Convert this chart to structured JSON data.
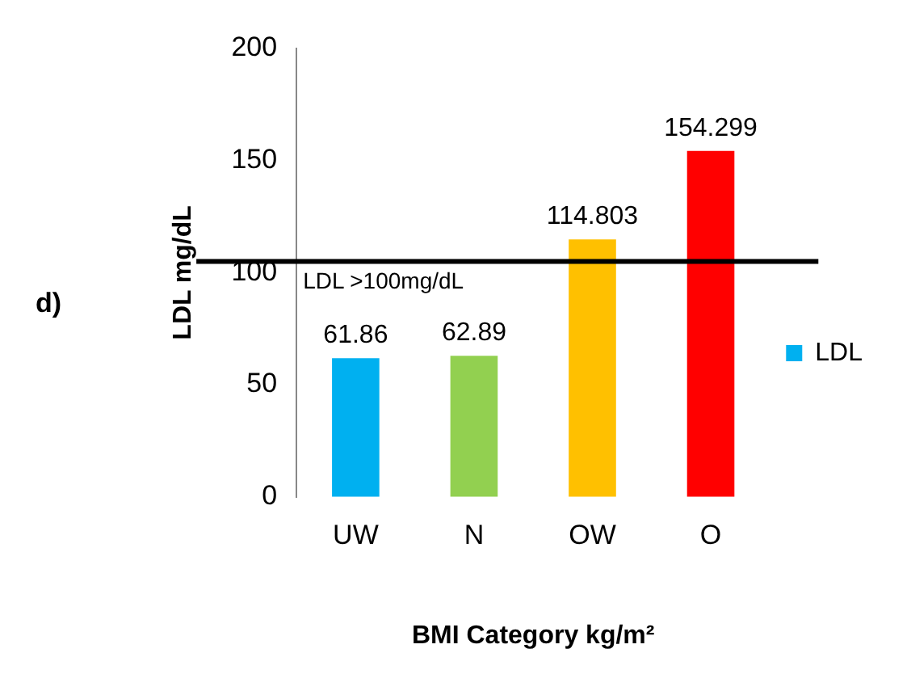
{
  "chart_data": {
    "type": "bar",
    "xlabel": "BMI Category kg/m²",
    "ylabel": "LDL mg/dL",
    "categories": [
      "UW",
      "N",
      "OW",
      "O"
    ],
    "series": [
      {
        "name": "LDL",
        "color": "#00b0f0",
        "colors": [
          "#00b0f0",
          "#92d050",
          "#ffc000",
          "#ff0000"
        ],
        "values": [
          61.86,
          62.89,
          114.803,
          154.299
        ]
      }
    ],
    "ylim": [
      0,
      200
    ],
    "yticks": [
      0,
      50,
      100,
      150,
      200
    ],
    "grid": false,
    "legend": "right",
    "data_labels": true,
    "ref_lines": [
      {
        "axis": "y",
        "value": 105,
        "label": "LDL >100mg/dL",
        "color": "#000000"
      }
    ],
    "annotations": [
      "d)"
    ]
  }
}
